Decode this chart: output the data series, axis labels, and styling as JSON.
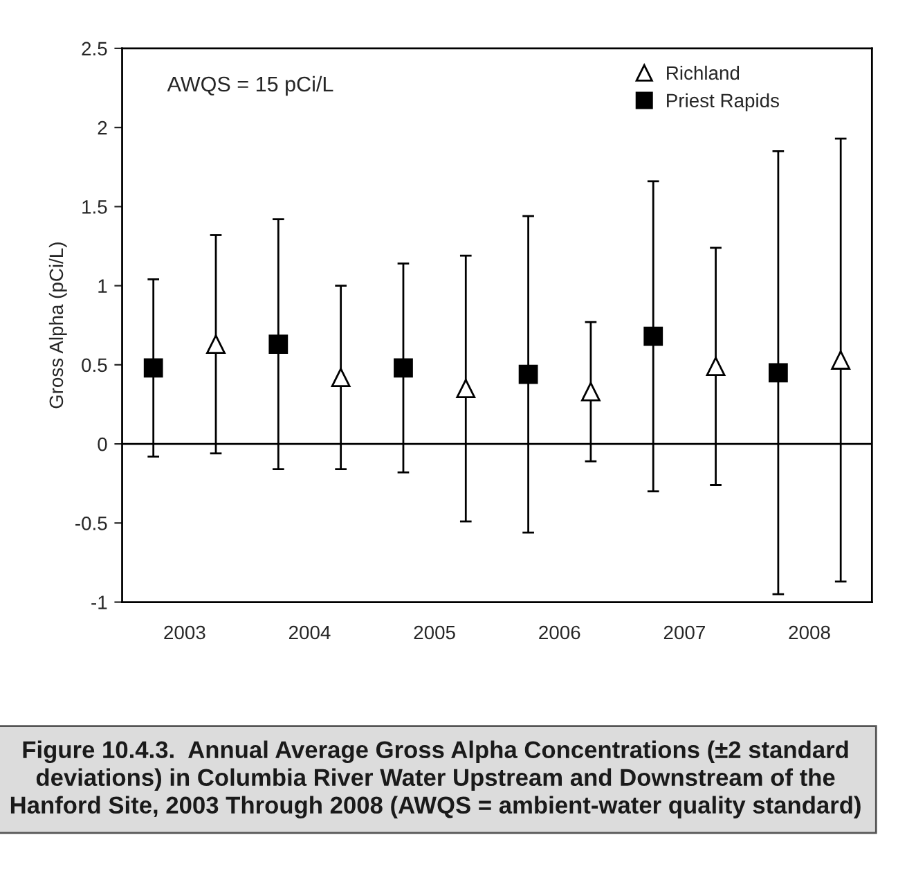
{
  "chart_data": {
    "type": "scatter",
    "ylabel": "Gross Alpha (pCi/L)",
    "categories": [
      "2003",
      "2004",
      "2005",
      "2006",
      "2007",
      "2008"
    ],
    "series": [
      {
        "name": "Priest Rapids",
        "color": "#000000",
        "marker": "square",
        "values": [
          0.48,
          0.63,
          0.48,
          0.44,
          0.68,
          0.45
        ],
        "errors": [
          0.56,
          0.79,
          0.66,
          1.0,
          0.98,
          1.4
        ]
      },
      {
        "name": "Richland",
        "color": "#000000",
        "marker": "triangle",
        "values": [
          0.63,
          0.42,
          0.35,
          0.33,
          0.49,
          0.53
        ],
        "errors": [
          0.69,
          0.58,
          0.84,
          0.44,
          0.75,
          1.4
        ]
      }
    ],
    "ylim": [
      -1,
      2.5
    ],
    "yticks": [
      -1,
      -0.5,
      0,
      0.5,
      1,
      1.5,
      2,
      2.5
    ],
    "ref_lines": [
      {
        "axis": "y",
        "value": 0,
        "color": "#000000"
      }
    ],
    "grid": false,
    "legend": "top right",
    "annotations": [
      "AWQS = 15 pCi/L",
      "Figure 10.4.3.  Annual Average Gross Alpha Concentrations (±2 standard deviations) in Columbia River Water Upstream and Downstream of the Hanford Site, 2003 Through 2008 (AWQS = ambient-water quality standard)"
    ]
  }
}
